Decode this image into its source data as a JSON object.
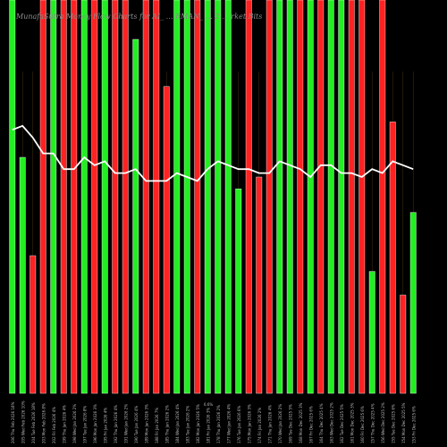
{
  "title": "MunafaSutra Money Flow Charts for AI_ … RMAN_ … 2 … rket Bits",
  "chart_data": {
    "type": "bar",
    "background": "#000000",
    "colors": {
      "up": "#22ee22",
      "down": "#ff2222",
      "line": "#ffffff"
    },
    "ylim": [
      0,
      100
    ],
    "categories": [
      "206 Thu Feb 2026",
      "205 Wed Feb 2026",
      "204 Tue Feb 2026",
      "203 Mon Feb 2026",
      "202 Fri Feb 2026",
      "199 Thu Jan 2026",
      "198 Wed Jan 2026",
      "197 Tue Jan 2026",
      "196 Mon Jan 2026",
      "195 Fri Jan 2026",
      "192 Thu Jan 2026",
      "191 Wed Jan 2026",
      "190 Tue Jan 2026",
      "189 Mon Jan 2026",
      "188 Fri Jan 2026",
      "185 Thu Jan 2026",
      "184 Wed Jan 2026",
      "183 Tue Jan 2026",
      "182 Mon Jan 2026",
      "181 Fri Jan 2026",
      "178 Thu Jan 2026",
      "177 Wed Jan 2026",
      "176 Tue Jan 2026",
      "175 Mon Jan 2026",
      "174 Fri Jan 2026",
      "171 Thu Jan 2026",
      "170 Wed Jan 2026",
      "169 Tue Dec 2025",
      "168 Mon Dec 2025",
      "167 Fri Dec 2025",
      "164 Thu Dec 2025",
      "163 Wed Dec 2025",
      "162 Tue Dec 2025",
      "161 Mon Dec 2025",
      "160 Fri Dec 2025",
      "157 Thu Dec 2025",
      "156 Wed Dec 2025",
      "155 Tue Dec 2025",
      "154 Mon Dec 2025",
      "153 Fri Dec 2025"
    ],
    "bars": [
      {
        "v": 100,
        "c": "up"
      },
      {
        "v": 60,
        "c": "up"
      },
      {
        "v": 35,
        "c": "down"
      },
      {
        "v": 100,
        "c": "down"
      },
      {
        "v": 100,
        "c": "up"
      },
      {
        "v": 100,
        "c": "down"
      },
      {
        "v": 100,
        "c": "down"
      },
      {
        "v": 100,
        "c": "up"
      },
      {
        "v": 100,
        "c": "down"
      },
      {
        "v": 100,
        "c": "up"
      },
      {
        "v": 100,
        "c": "down"
      },
      {
        "v": 100,
        "c": "down"
      },
      {
        "v": 90,
        "c": "up"
      },
      {
        "v": 100,
        "c": "down"
      },
      {
        "v": 100,
        "c": "down"
      },
      {
        "v": 78,
        "c": "down"
      },
      {
        "v": 100,
        "c": "up"
      },
      {
        "v": 100,
        "c": "up"
      },
      {
        "v": 100,
        "c": "down"
      },
      {
        "v": 100,
        "c": "up"
      },
      {
        "v": 100,
        "c": "up"
      },
      {
        "v": 100,
        "c": "up"
      },
      {
        "v": 52,
        "c": "up"
      },
      {
        "v": 100,
        "c": "down"
      },
      {
        "v": 55,
        "c": "down"
      },
      {
        "v": 100,
        "c": "down"
      },
      {
        "v": 100,
        "c": "up"
      },
      {
        "v": 100,
        "c": "up"
      },
      {
        "v": 100,
        "c": "down"
      },
      {
        "v": 100,
        "c": "up"
      },
      {
        "v": 100,
        "c": "down"
      },
      {
        "v": 100,
        "c": "up"
      },
      {
        "v": 100,
        "c": "up"
      },
      {
        "v": 100,
        "c": "down"
      },
      {
        "v": 100,
        "c": "down"
      },
      {
        "v": 31,
        "c": "up"
      },
      {
        "v": 100,
        "c": "down"
      },
      {
        "v": 69,
        "c": "down"
      },
      {
        "v": 25,
        "c": "down"
      },
      {
        "v": 46,
        "c": "up"
      }
    ],
    "line": [
      67,
      68,
      65,
      61,
      61,
      57,
      57,
      60,
      58,
      59,
      56,
      56,
      57,
      54,
      54,
      54,
      56,
      55,
      54,
      57,
      59,
      58,
      57,
      57,
      56,
      56,
      59,
      58,
      57,
      55,
      58,
      58,
      56,
      56,
      55,
      57,
      56,
      59,
      58,
      57
    ],
    "tick_labels": [
      "206 Thu Feb 2026 18%",
      "205 Wed Feb 2026 10%",
      "204 Tue Feb 2026 18%",
      "203 Mon Feb 2026 8%",
      "202 Fri Feb 2026 4%",
      "199 Thu Jan 2026 4%",
      "198 Wed Jan 2026 2%",
      "197 Tue Jan 2026 8%",
      "196 Mon Jan 2026 3%",
      "195 Fri Jan 2026 4%",
      "192 Thu Jan 2026 4%",
      "191 Wed Jan 2026 2%",
      "190 Tue Jan 2026 4%",
      "189 Mon Jan 2026 3%",
      "188 Fri Jan 2026 7%",
      "185 Thu Jan 2026 2%",
      "184 Wed Jan 2026 4%",
      "183 Tue Jan 2026 2%",
      "182 Mon Jan 2026 5%",
      "181 Fri Jan 2026 3%",
      "178 Thu Jan 2026 2%",
      "177 Wed Jan 2026 4%",
      "176 Tue Jan 2026 6%",
      "175 Mon Jan 2026 3%",
      "174 Fri Jan 2026 2%",
      "171 Thu Jan 2026 4%",
      "170 Wed Jan 2026 2%",
      "169 Tue Dec 2025 5%",
      "168 Mon Dec 2025 3%",
      "167 Fri Dec 2025 6%",
      "164 Thu Dec 2025 4%",
      "163 Wed Dec 2025 2%",
      "162 Tue Dec 2025 5%",
      "161 Mon Dec 2025 3%",
      "160 Fri Dec 2025 6%",
      "157 Thu Dec 2025 4%",
      "156 Wed Dec 2025 2%",
      "155 Tue Dec 2025 6%",
      "154 Mon Dec 2025 5%",
      "153 Fri Dec 2025 6%"
    ],
    "annotation": "6.6%"
  }
}
